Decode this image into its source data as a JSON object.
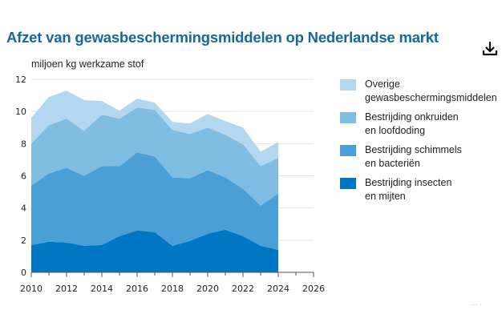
{
  "header": {
    "title": "Afzet van gewasbeschermingsmiddelen op Nederlandse markt",
    "download_icon": "download-icon"
  },
  "colors": {
    "title": "#16689a",
    "overige": "#b2d7ee",
    "onkruiden": "#7fbde2",
    "schimmels": "#4aa0d6",
    "insecten": "#0077c4",
    "grid": "#e3e3e3",
    "axis": "#555555"
  },
  "footnote": "···· ·",
  "chart_data": {
    "type": "area",
    "stacked": true,
    "title": "Afzet van gewasbeschermingsmiddelen op Nederlandse markt",
    "ylabel": "miljoen kg werkzame stof",
    "xlabel": "",
    "x": [
      2010,
      2011,
      2012,
      2013,
      2014,
      2015,
      2016,
      2017,
      2018,
      2019,
      2020,
      2021,
      2022,
      2023,
      2024
    ],
    "xlim": [
      2010,
      2026
    ],
    "xticks": [
      2010,
      2012,
      2014,
      2016,
      2018,
      2020,
      2022,
      2024,
      2026
    ],
    "ylim": [
      0,
      12
    ],
    "yticks": [
      0,
      2,
      4,
      6,
      8,
      10,
      12
    ],
    "grid": true,
    "legend_position": "right",
    "series": [
      {
        "name": "Bestrijding insecten\nen mijten",
        "color_key": "insecten",
        "values": [
          1.7,
          1.9,
          1.85,
          1.65,
          1.7,
          2.25,
          2.6,
          2.5,
          1.65,
          1.95,
          2.4,
          2.65,
          2.25,
          1.65,
          1.4
        ]
      },
      {
        "name": "Bestrijding schimmels\nen bacteriën",
        "color_key": "schimmels",
        "values": [
          3.7,
          4.25,
          4.65,
          4.35,
          4.9,
          4.35,
          4.85,
          4.7,
          4.25,
          3.9,
          3.95,
          3.25,
          2.95,
          2.5,
          3.5
        ]
      },
      {
        "name": "Bestrijding onkruiden\nen loofdoding",
        "color_key": "onkruiden",
        "values": [
          2.6,
          3.0,
          3.05,
          2.8,
          3.2,
          2.95,
          2.8,
          2.9,
          2.95,
          2.75,
          2.65,
          2.65,
          2.75,
          2.45,
          2.2
        ]
      },
      {
        "name": "Overige\ngewasbeschermingsmiddelen",
        "color_key": "overige",
        "values": [
          1.6,
          1.75,
          1.75,
          1.9,
          0.85,
          0.5,
          0.55,
          0.45,
          0.5,
          0.65,
          0.85,
          0.85,
          1.05,
          0.9,
          1.0
        ]
      }
    ]
  }
}
